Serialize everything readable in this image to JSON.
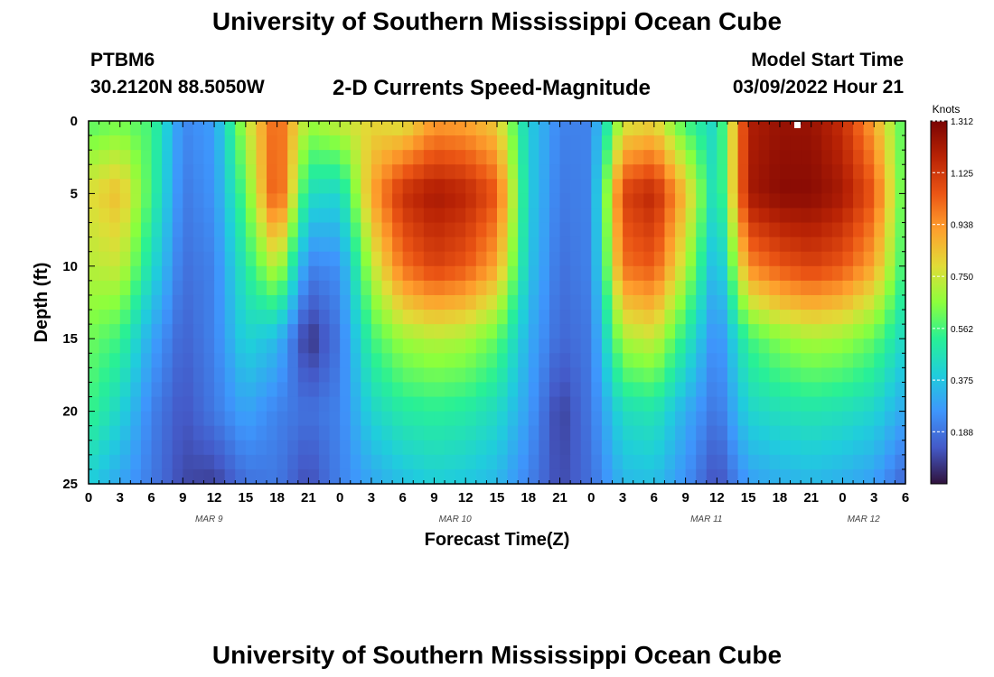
{
  "header": {
    "title": "University of Southern Mississippi Ocean Cube",
    "station_id": "PTBM6",
    "station_coords": "30.2120N  88.5050W",
    "plot_title": "2-D Currents Speed-Magnitude",
    "model_start_label": "Model Start Time",
    "model_start_value": "03/09/2022 Hour 21"
  },
  "footer": {
    "title": "University of Southern Mississippi Ocean Cube"
  },
  "chart_data": {
    "type": "heatmap",
    "title": "2-D Currents Speed-Magnitude",
    "xlabel": "Forecast Time(Z)",
    "ylabel": "Depth (ft)",
    "x_tick_labels": [
      "0",
      "3",
      "6",
      "9",
      "12",
      "15",
      "18",
      "21",
      "0",
      "3",
      "6",
      "9",
      "12",
      "15",
      "18",
      "21",
      "0",
      "3",
      "6",
      "9",
      "12",
      "15",
      "18",
      "21",
      "0",
      "3",
      "6"
    ],
    "x_range_hours": [
      0,
      78
    ],
    "date_labels": [
      {
        "label": "MAR 9",
        "hour": 11.5
      },
      {
        "label": "MAR 10",
        "hour": 35
      },
      {
        "label": "MAR 11",
        "hour": 59
      },
      {
        "label": "MAR 12",
        "hour": 74
      }
    ],
    "y_ticks": [
      0,
      5,
      10,
      15,
      20,
      25
    ],
    "y_range_ft": [
      0,
      25
    ],
    "y_inverted": true,
    "colorbar": {
      "unit": "Knots",
      "min": 0,
      "max": 1.312,
      "tick_labels": [
        "1.312",
        "1.125",
        "0.938",
        "0.750",
        "0.562",
        "0.375",
        "0.188"
      ],
      "tick_values": [
        1.312,
        1.125,
        0.938,
        0.75,
        0.562,
        0.375,
        0.188
      ],
      "colormap": "turbo"
    },
    "depth_levels_ft": [
      0,
      5,
      10,
      15,
      20,
      25
    ],
    "time_hours": [
      0,
      3,
      6,
      9,
      12,
      15,
      18,
      21,
      24,
      27,
      30,
      33,
      36,
      39,
      42,
      45,
      48,
      51,
      54,
      57,
      60,
      63,
      66,
      69,
      72,
      75,
      78
    ],
    "speed_knots": [
      [
        0.58,
        0.62,
        0.56,
        0.23,
        0.28,
        0.72,
        1.05,
        0.68,
        0.75,
        0.8,
        0.76,
        0.92,
        0.9,
        0.82,
        0.4,
        0.22,
        0.22,
        0.75,
        0.8,
        0.55,
        0.42,
        1.2,
        1.25,
        1.25,
        1.15,
        0.9,
        0.55
      ],
      [
        0.78,
        0.86,
        0.55,
        0.2,
        0.26,
        0.6,
        1.1,
        0.45,
        0.42,
        0.9,
        1.15,
        1.22,
        1.18,
        1.05,
        0.4,
        0.2,
        0.22,
        1.1,
        1.18,
        0.85,
        0.4,
        1.22,
        1.28,
        1.28,
        1.22,
        1.05,
        0.55
      ],
      [
        0.72,
        0.75,
        0.45,
        0.18,
        0.22,
        0.5,
        0.75,
        0.22,
        0.25,
        0.72,
        1.0,
        1.1,
        1.05,
        0.9,
        0.38,
        0.18,
        0.22,
        1.0,
        1.05,
        0.72,
        0.3,
        0.95,
        1.05,
        1.1,
        1.05,
        0.9,
        0.52
      ],
      [
        0.62,
        0.55,
        0.3,
        0.15,
        0.22,
        0.42,
        0.35,
        0.05,
        0.2,
        0.55,
        0.68,
        0.72,
        0.7,
        0.6,
        0.32,
        0.16,
        0.2,
        0.7,
        0.75,
        0.5,
        0.22,
        0.55,
        0.65,
        0.7,
        0.68,
        0.6,
        0.42
      ],
      [
        0.55,
        0.42,
        0.22,
        0.12,
        0.2,
        0.3,
        0.22,
        0.18,
        0.22,
        0.42,
        0.5,
        0.52,
        0.5,
        0.44,
        0.28,
        0.08,
        0.2,
        0.45,
        0.48,
        0.32,
        0.18,
        0.42,
        0.46,
        0.48,
        0.46,
        0.42,
        0.3
      ],
      [
        0.4,
        0.3,
        0.2,
        0.1,
        0.08,
        0.18,
        0.2,
        0.1,
        0.22,
        0.3,
        0.36,
        0.4,
        0.38,
        0.34,
        0.22,
        0.1,
        0.18,
        0.34,
        0.36,
        0.25,
        0.1,
        0.28,
        0.32,
        0.34,
        0.32,
        0.28,
        0.15
      ]
    ]
  }
}
